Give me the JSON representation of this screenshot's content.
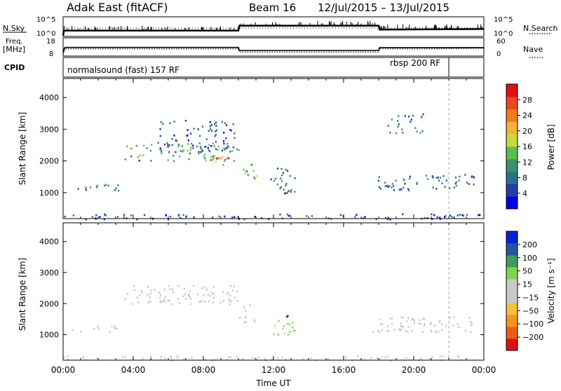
{
  "header": {
    "title": "Adak East (fitACF)",
    "beam": "Beam 16",
    "date_range": "12/Jul/2015 – 13/Jul/2015"
  },
  "summary": {
    "nsky_label": "N.Sky",
    "nsearch_label": "N.Search",
    "freq_label_top": "Freq.",
    "freq_label_bottom": "[MHz]",
    "nave_label": "Nave",
    "cpid_label": "CPID",
    "nsky_ticks": [
      "10^5",
      "10^0"
    ],
    "nsearch_ticks": [
      "10^5",
      "10^0"
    ],
    "freq_ticks": [
      "18",
      "8"
    ],
    "nave_ticks": [
      "60",
      "0"
    ],
    "cpid_modes": [
      "normalsound (fast) 157 RF",
      "rbsp 200 RF"
    ],
    "noise_trace": {
      "x_hours": [
        0,
        0.05,
        10,
        10.05,
        18,
        18.05,
        24
      ],
      "level_frac": [
        0.05,
        0.3,
        0.3,
        0.55,
        0.55,
        0.35,
        0.38
      ]
    },
    "freq_trace": {
      "x_hours": [
        0,
        0.1,
        10,
        10.05,
        18,
        18.05,
        24
      ],
      "mhz": [
        8,
        12.6,
        12.6,
        10.2,
        10.2,
        12.5,
        12.5
      ]
    },
    "nave_trace": {
      "x_hours": [
        0,
        10,
        10.05,
        18,
        18.05,
        21,
        24
      ],
      "value": [
        21,
        21,
        6,
        6,
        21,
        21,
        24
      ]
    },
    "cpid_change_hours": [
      22
    ]
  },
  "chart_data": [
    {
      "type": "heatmap",
      "parameter": "power",
      "xlabel": "Time UT",
      "ylabel": "Slant Range [km]",
      "x_ticks": [
        "00:00",
        "04:00",
        "08:00",
        "12:00",
        "16:00",
        "20:00",
        "00:00"
      ],
      "x_range_hours": [
        0,
        24
      ],
      "y_range_km": [
        180,
        4600
      ],
      "y_ticks": [
        1000,
        2000,
        3000,
        4000
      ],
      "colorbar": {
        "label": "Power [dB]",
        "range": [
          0,
          32
        ],
        "ticks": [
          4,
          8,
          12,
          16,
          20,
          24,
          28
        ],
        "colors": [
          "#0000e6",
          "#1e3fa8",
          "#2d6e8e",
          "#3c9070",
          "#5bbf4e",
          "#c8d940",
          "#f2b233",
          "#f07a1e",
          "#e94820",
          "#e01010"
        ]
      },
      "echo_regions": [
        {
          "t": [
            0.2,
            3.2
          ],
          "r": [
            1100,
            1300
          ],
          "value": 7
        },
        {
          "t": [
            2.8,
            3.2
          ],
          "r": [
            900,
            1200
          ],
          "value": 9
        },
        {
          "t": [
            3.5,
            10
          ],
          "r": [
            2000,
            2600
          ],
          "value": 13
        },
        {
          "t": [
            5.5,
            9.8
          ],
          "r": [
            2300,
            3300
          ],
          "value": 6
        },
        {
          "t": [
            8.0,
            9.5
          ],
          "r": [
            1900,
            2200
          ],
          "value": 24
        },
        {
          "t": [
            10,
            11
          ],
          "r": [
            1400,
            2000
          ],
          "value": 14
        },
        {
          "t": [
            11.8,
            13.2
          ],
          "r": [
            1000,
            1800
          ],
          "value": 8
        },
        {
          "t": [
            18.5,
            20.5
          ],
          "r": [
            2900,
            3500
          ],
          "value": 8
        },
        {
          "t": [
            17.5,
            23.5
          ],
          "r": [
            1100,
            1600
          ],
          "value": 8
        },
        {
          "t": [
            0,
            24
          ],
          "r": [
            180,
            350
          ],
          "value": 5
        }
      ]
    },
    {
      "type": "heatmap",
      "parameter": "velocity",
      "xlabel": "Time UT",
      "ylabel": "Slant Range [km]",
      "x_ticks": [
        "00:00",
        "04:00",
        "08:00",
        "12:00",
        "16:00",
        "20:00",
        "00:00"
      ],
      "x_range_hours": [
        0,
        24
      ],
      "y_range_km": [
        180,
        4600
      ],
      "y_ticks": [
        1000,
        2000,
        3000,
        4000
      ],
      "colorbar": {
        "label": "Velocity [m s⁻¹]",
        "range": [
          -250,
          250
        ],
        "ticks": [
          "200",
          "100",
          "50",
          "15",
          "−15",
          "−50",
          "−100",
          "−200"
        ],
        "colors": [
          "#e01010",
          "#ef5a1a",
          "#f59420",
          "#f5c040",
          "#c8c8c8",
          "#c8c8c8",
          "#7fd44a",
          "#3c9d5a",
          "#2456a8",
          "#0a1fd6"
        ]
      },
      "echo_regions": [
        {
          "t": [
            0.2,
            3.2
          ],
          "r": [
            1100,
            1300
          ],
          "value": 0
        },
        {
          "t": [
            3.5,
            10
          ],
          "r": [
            2000,
            2600
          ],
          "value": 0
        },
        {
          "t": [
            10,
            11
          ],
          "r": [
            1400,
            2000
          ],
          "value": -40
        },
        {
          "t": [
            11.8,
            13.2
          ],
          "r": [
            1000,
            1500
          ],
          "value": 60
        },
        {
          "t": [
            11.8,
            12.8
          ],
          "r": [
            1600,
            1800
          ],
          "value": 230
        },
        {
          "t": [
            17.5,
            23.5
          ],
          "r": [
            1100,
            1600
          ],
          "value": 0
        },
        {
          "t": [
            0,
            24
          ],
          "r": [
            180,
            350
          ],
          "value": -30
        }
      ]
    }
  ]
}
